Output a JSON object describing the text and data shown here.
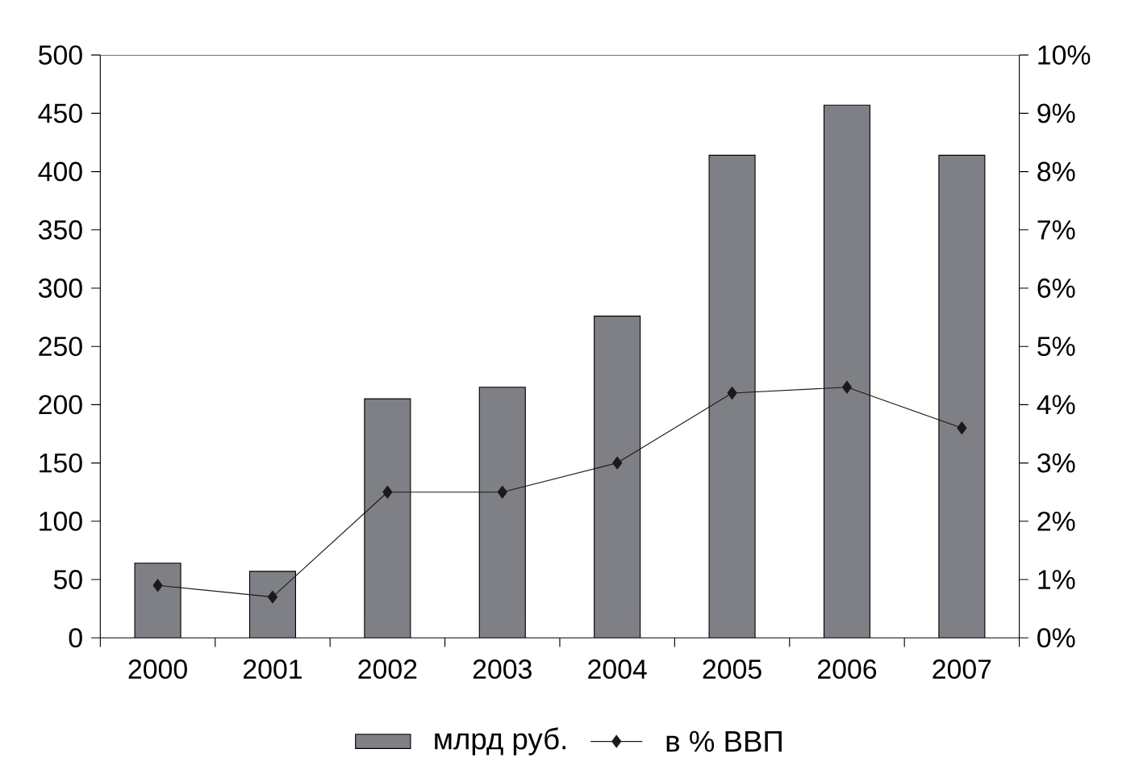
{
  "chart_data": {
    "type": "bar",
    "categories": [
      "2000",
      "2001",
      "2002",
      "2003",
      "2004",
      "2005",
      "2006",
      "2007"
    ],
    "series": [
      {
        "name": "млрд  руб.",
        "color": "#7f8085",
        "values": [
          64,
          57,
          205,
          215,
          276,
          414,
          457,
          414
        ]
      },
      {
        "name": "в % ВВП",
        "type": "line",
        "axis": "y2",
        "color": "#1a1a1a",
        "marker": "diamond",
        "values": [
          0.9,
          0.7,
          2.5,
          2.5,
          3.0,
          4.2,
          4.3,
          3.6
        ]
      }
    ],
    "ylim": [
      0,
      500
    ],
    "yticks": [
      0,
      50,
      100,
      150,
      200,
      250,
      300,
      350,
      400,
      450,
      500
    ],
    "y2lim": [
      0,
      10
    ],
    "y2ticks": [
      {
        "value": 0,
        "label": "0%"
      },
      {
        "value": 1,
        "label": "1%"
      },
      {
        "value": 2,
        "label": "2%"
      },
      {
        "value": 3,
        "label": "3%"
      },
      {
        "value": 4,
        "label": "4%"
      },
      {
        "value": 5,
        "label": "5%"
      },
      {
        "value": 6,
        "label": "6%"
      },
      {
        "value": 7,
        "label": "7%"
      },
      {
        "value": 8,
        "label": "8%"
      },
      {
        "value": 9,
        "label": "9%"
      },
      {
        "value": 10,
        "label": "10%"
      }
    ],
    "legend": "bottom",
    "grid": false
  }
}
